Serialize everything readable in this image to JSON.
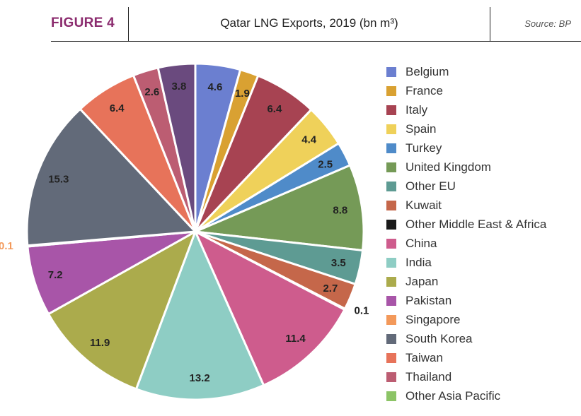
{
  "header": {
    "figure_label": "FIGURE 4",
    "title": "Qatar LNG Exports, 2019 (bn m³)",
    "source": "Source: BP"
  },
  "chart_data": {
    "type": "pie",
    "title": "Qatar LNG Exports, 2019 (bn m³)",
    "unit": "bn m³",
    "slices": [
      {
        "label": "Belgium",
        "value": 4.6,
        "color": "#6b7fd0"
      },
      {
        "label": "France",
        "value": 1.9,
        "color": "#d9a132"
      },
      {
        "label": "Italy",
        "value": 6.4,
        "color": "#a74352"
      },
      {
        "label": "Spain",
        "value": 4.4,
        "color": "#efd15a"
      },
      {
        "label": "Turkey",
        "value": 2.5,
        "color": "#4f8bc9"
      },
      {
        "label": "United Kingdom",
        "value": 8.8,
        "color": "#759a57"
      },
      {
        "label": "Other EU",
        "value": 3.5,
        "color": "#5e9b93"
      },
      {
        "label": "Kuwait",
        "value": 2.7,
        "color": "#c5674a"
      },
      {
        "label": "Other Middle East & Africa",
        "value": 0.1,
        "color": "#1a1a1a"
      },
      {
        "label": "China",
        "value": 11.4,
        "color": "#ce5c8d"
      },
      {
        "label": "India",
        "value": 13.2,
        "color": "#8ecdc4"
      },
      {
        "label": "Japan",
        "value": 11.9,
        "color": "#abab4c"
      },
      {
        "label": "Pakistan",
        "value": 7.2,
        "color": "#a855a8"
      },
      {
        "label": "Singapore",
        "value": 0.1,
        "color": "#f3995a"
      },
      {
        "label": "South Korea",
        "value": 15.3,
        "color": "#626a79"
      },
      {
        "label": "Taiwan",
        "value": 6.4,
        "color": "#e7735a"
      },
      {
        "label": "Thailand",
        "value": 2.6,
        "color": "#bc5d72"
      },
      {
        "label": "Other Asia Pacific",
        "value": 3.8,
        "color": "#6a4a7e"
      }
    ],
    "legend_entries": [
      {
        "label": "Belgium",
        "color": "#6b7fd0"
      },
      {
        "label": "France",
        "color": "#d9a132"
      },
      {
        "label": "Italy",
        "color": "#a74352"
      },
      {
        "label": "Spain",
        "color": "#efd15a"
      },
      {
        "label": "Turkey",
        "color": "#4f8bc9"
      },
      {
        "label": "United Kingdom",
        "color": "#759a57"
      },
      {
        "label": "Other EU",
        "color": "#5e9b93"
      },
      {
        "label": "Kuwait",
        "color": "#c5674a"
      },
      {
        "label": "Other Middle East & Africa",
        "color": "#1a1a1a"
      },
      {
        "label": "China",
        "color": "#ce5c8d"
      },
      {
        "label": "India",
        "color": "#8ecdc4"
      },
      {
        "label": "Japan",
        "color": "#abab4c"
      },
      {
        "label": "Pakistan",
        "color": "#a855a8"
      },
      {
        "label": "Singapore",
        "color": "#f3995a"
      },
      {
        "label": "South Korea",
        "color": "#626a79"
      },
      {
        "label": "Taiwan",
        "color": "#e7735a"
      },
      {
        "label": "Thailand",
        "color": "#bc5d72"
      },
      {
        "label": "Other Asia Pacific",
        "color": "#8cc466"
      }
    ],
    "legend_placement": "right"
  }
}
